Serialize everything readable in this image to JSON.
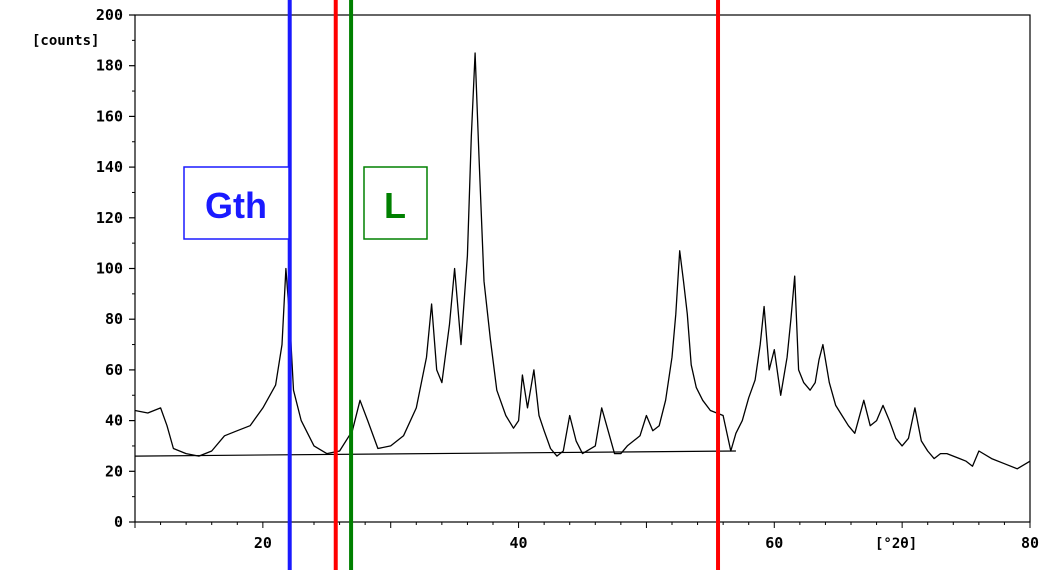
{
  "chart_data": {
    "type": "line",
    "y_unit_label": "[counts]",
    "x_unit_label": "[°2θ]",
    "xlim": [
      10,
      80
    ],
    "ylim": [
      0,
      200
    ],
    "x_ticks": [
      20,
      40,
      60,
      80
    ],
    "y_ticks": [
      0,
      20,
      40,
      60,
      80,
      100,
      120,
      140,
      160,
      180,
      200
    ],
    "grid": false,
    "colors": {
      "trace": "#000000",
      "gth": "#1a1aff",
      "red": "#ff0000",
      "l": "#008000"
    },
    "series": [
      {
        "x": [
          10,
          11,
          12,
          12.5,
          13,
          14,
          15,
          16,
          17,
          18,
          19,
          20,
          21,
          21.5,
          21.8,
          22.1,
          22.4,
          23,
          24,
          25,
          26,
          27,
          27.6,
          28.2,
          29,
          30,
          31,
          32,
          32.8,
          33.2,
          33.6,
          34,
          34.6,
          35,
          35.5,
          36,
          36.3,
          36.6,
          36.9,
          37.3,
          37.8,
          38.3,
          39,
          39.6,
          40,
          40.3,
          40.7,
          41.2,
          41.6,
          42,
          42.5,
          43,
          43.5,
          44,
          44.5,
          45,
          46,
          46.5,
          47,
          47.5,
          48,
          48.5,
          49.5,
          50,
          50.5,
          51,
          51.5,
          52,
          52.3,
          52.6,
          52.9,
          53.2,
          53.5,
          53.9,
          54.4,
          55,
          56,
          56.6,
          57,
          57.5,
          58,
          58.5,
          58.9,
          59.2,
          59.6,
          60,
          60.5,
          61,
          61.3,
          61.6,
          61.9,
          62.3,
          62.8,
          63.2,
          63.5,
          63.8,
          64.3,
          64.8,
          65.3,
          65.8,
          66.3,
          67,
          67.5,
          68,
          68.5,
          69,
          69.5,
          70,
          70.5,
          71,
          71.5,
          72,
          72.5,
          73,
          73.5,
          74,
          74.5,
          75,
          75.5,
          76,
          77,
          78,
          79,
          80
        ],
        "y": [
          44,
          43,
          45,
          38,
          29,
          27,
          26,
          28,
          34,
          36,
          38,
          45,
          54,
          70,
          100,
          80,
          52,
          40,
          30,
          27,
          28,
          36,
          48,
          40,
          29,
          30,
          34,
          45,
          65,
          86,
          60,
          55,
          78,
          100,
          70,
          105,
          152,
          185,
          145,
          95,
          72,
          52,
          42,
          37,
          40,
          58,
          45,
          60,
          42,
          36,
          29,
          26,
          28,
          42,
          32,
          27,
          30,
          45,
          36,
          27,
          27,
          30,
          34,
          42,
          36,
          38,
          48,
          65,
          82,
          107,
          95,
          82,
          62,
          53,
          48,
          44,
          42,
          28,
          35,
          40,
          49,
          56,
          70,
          85,
          60,
          68,
          50,
          65,
          80,
          97,
          60,
          55,
          52,
          55,
          64,
          70,
          55,
          46,
          42,
          38,
          35,
          48,
          38,
          40,
          46,
          40,
          33,
          30,
          33,
          45,
          32,
          28,
          25,
          27,
          27,
          26,
          25,
          24,
          22,
          28,
          25,
          23,
          21,
          24
        ]
      }
    ],
    "baseline": {
      "x": [
        10,
        57
      ],
      "y": [
        26,
        28
      ]
    },
    "vlines": [
      {
        "x": 22.1,
        "color": "gth"
      },
      {
        "x": 25.7,
        "color": "red"
      },
      {
        "x": 26.9,
        "color": "l"
      },
      {
        "x": 55.6,
        "color": "red"
      }
    ],
    "annotations": [
      {
        "text": "Gth",
        "color": "gth"
      },
      {
        "text": "L",
        "color": "l"
      }
    ]
  }
}
